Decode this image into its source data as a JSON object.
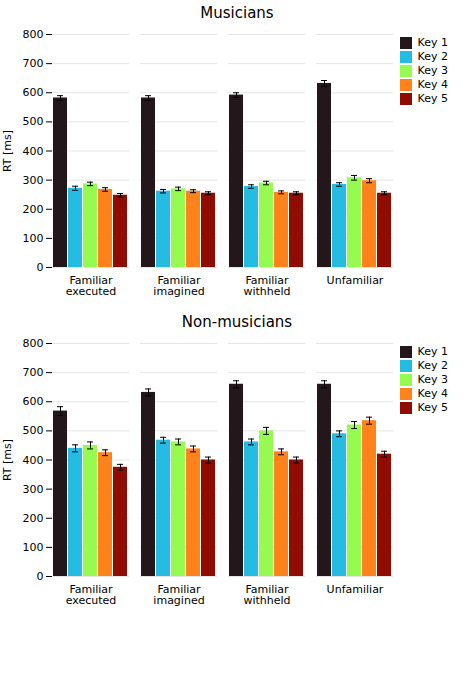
{
  "chart_data": [
    {
      "type": "bar",
      "title": "Musicians",
      "ylabel": "RT [ms]",
      "categories": [
        "Familiar\nexecuted",
        "Familiar\nimagined",
        "Familiar\nwithheld",
        "Unfamiliar"
      ],
      "series": [
        {
          "name": "Key 1",
          "values": [
            582,
            582,
            592,
            632
          ],
          "errors": [
            8,
            8,
            8,
            10
          ]
        },
        {
          "name": "Key 2",
          "values": [
            272,
            262,
            278,
            285
          ],
          "errors": [
            7,
            6,
            6,
            6
          ]
        },
        {
          "name": "Key 3",
          "values": [
            287,
            270,
            290,
            308
          ],
          "errors": [
            6,
            6,
            6,
            8
          ]
        },
        {
          "name": "Key 4",
          "values": [
            268,
            262,
            258,
            298
          ],
          "errors": [
            6,
            5,
            5,
            7
          ]
        },
        {
          "name": "Key 5",
          "values": [
            248,
            255,
            255,
            255
          ],
          "errors": [
            6,
            5,
            5,
            5
          ]
        }
      ],
      "ylim": [
        0,
        800
      ],
      "yticks": [
        0,
        100,
        200,
        300,
        400,
        500,
        600,
        700,
        800
      ],
      "grid": true,
      "legend": "right"
    },
    {
      "type": "bar",
      "title": "Non-musicians",
      "ylabel": "RT [ms]",
      "categories": [
        "Familiar\nexecuted",
        "Familiar\nimagined",
        "Familiar\nwithheld",
        "Unfamiliar"
      ],
      "series": [
        {
          "name": "Key 1",
          "values": [
            568,
            632,
            660,
            660
          ],
          "errors": [
            15,
            12,
            12,
            12
          ]
        },
        {
          "name": "Key 2",
          "values": [
            440,
            468,
            462,
            490
          ],
          "errors": [
            12,
            10,
            10,
            10
          ]
        },
        {
          "name": "Key 3",
          "values": [
            450,
            462,
            500,
            520
          ],
          "errors": [
            12,
            10,
            12,
            12
          ]
        },
        {
          "name": "Key 4",
          "values": [
            425,
            438,
            428,
            535
          ],
          "errors": [
            10,
            10,
            10,
            12
          ]
        },
        {
          "name": "Key 5",
          "values": [
            375,
            400,
            400,
            420
          ],
          "errors": [
            10,
            10,
            10,
            10
          ]
        }
      ],
      "ylim": [
        0,
        800
      ],
      "yticks": [
        0,
        100,
        200,
        300,
        400,
        500,
        600,
        700,
        800
      ],
      "grid": true,
      "legend": "right"
    }
  ]
}
